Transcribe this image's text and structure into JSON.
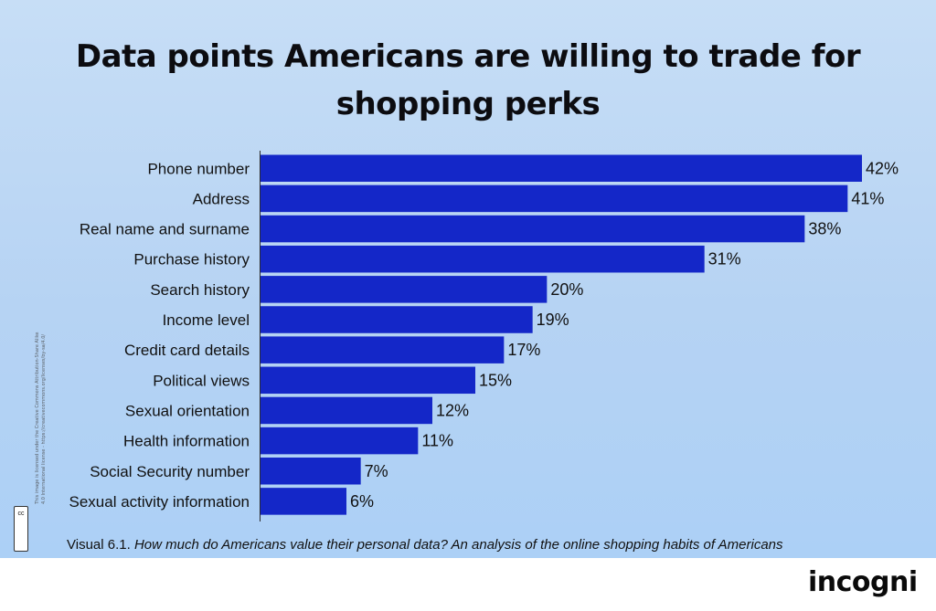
{
  "title": {
    "line1": "Data points Americans are willing to trade for",
    "line2": "shopping perks"
  },
  "chart_data": {
    "type": "bar",
    "orientation": "horizontal",
    "title": "Data points Americans are willing to trade for shopping perks",
    "categories": [
      "Phone number",
      "Address",
      "Real name and surname",
      "Purchase history",
      "Search history",
      "Income level",
      "Credit card details",
      "Political views",
      "Sexual orientation",
      "Health information",
      "Social Security number",
      "Sexual activity information"
    ],
    "values": [
      42,
      41,
      38,
      31,
      20,
      19,
      17,
      15,
      12,
      11,
      7,
      6
    ],
    "value_labels": [
      "42%",
      "41%",
      "38%",
      "31%",
      "20%",
      "19%",
      "17%",
      "15%",
      "12%",
      "11%",
      "7%",
      "6%"
    ],
    "unit": "%",
    "xlim": [
      0,
      42
    ],
    "xlabel": "",
    "ylabel": "",
    "grid": false,
    "bar_color": "#1427c8"
  },
  "caption": {
    "prefix": "Visual 6.1. ",
    "text": "How much do Americans value their personal data? An analysis of the online shopping habits of Americans"
  },
  "license": {
    "line1": "This image is licensed under the Creative Commons Attribution-Share Alike",
    "line2": "4.0 International license - https://creativecommons.org/licenses/by-sa/4.0/",
    "badge": "cc"
  },
  "brand": {
    "logo": "incogni"
  },
  "colors": {
    "background": "#bcd6f4",
    "bar": "#1427c8",
    "text": "#111111"
  }
}
